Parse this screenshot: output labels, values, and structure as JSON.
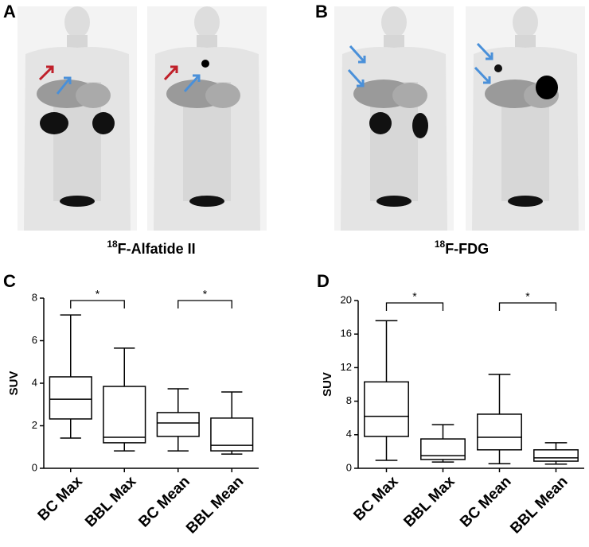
{
  "images": [
    {
      "label": "A"
    },
    {
      "label": "B"
    }
  ],
  "chart_data": [
    {
      "type": "box",
      "panel": "C",
      "title": {
        "isotope": "18",
        "name": "F-Alfatide II"
      },
      "ylabel": "SUV",
      "categories": [
        "BC Max",
        "BBL Max",
        "BC Mean",
        "BBL Mean"
      ],
      "boxes": [
        {
          "min": 1.42,
          "q1": 2.32,
          "median": 3.25,
          "q3": 4.3,
          "max": 7.21
        },
        {
          "min": 0.82,
          "q1": 1.2,
          "median": 1.46,
          "q3": 3.85,
          "max": 5.65
        },
        {
          "min": 0.82,
          "q1": 1.5,
          "median": 2.13,
          "q3": 2.62,
          "max": 3.74
        },
        {
          "min": 0.67,
          "q1": 0.82,
          "median": 1.08,
          "q3": 2.36,
          "max": 3.59
        }
      ],
      "ylim": [
        0,
        8
      ],
      "yticks": [
        0,
        2,
        4,
        6,
        8
      ],
      "annotations": [
        {
          "text": "*",
          "between": [
            0,
            1
          ]
        },
        {
          "text": "*",
          "between": [
            2,
            3
          ]
        }
      ]
    },
    {
      "type": "box",
      "panel": "D",
      "title": {
        "isotope": "18",
        "name": "F-FDG"
      },
      "ylabel": "SUV",
      "categories": [
        "BC Max",
        "BBL Max",
        "BC Mean",
        "BBL Mean"
      ],
      "boxes": [
        {
          "min": 0.95,
          "q1": 3.8,
          "median": 6.2,
          "q3": 10.3,
          "max": 17.6
        },
        {
          "min": 0.75,
          "q1": 1.05,
          "median": 1.5,
          "q3": 3.5,
          "max": 5.2
        },
        {
          "min": 0.55,
          "q1": 2.2,
          "median": 3.7,
          "q3": 6.45,
          "max": 11.2
        },
        {
          "min": 0.5,
          "q1": 0.85,
          "median": 1.25,
          "q3": 2.2,
          "max": 3.05
        }
      ],
      "ylim": [
        0,
        20
      ],
      "yticks": [
        0,
        4,
        8,
        12,
        16,
        20
      ],
      "annotations": [
        {
          "text": "*",
          "between": [
            0,
            1
          ]
        },
        {
          "text": "*",
          "between": [
            2,
            3
          ]
        }
      ]
    }
  ]
}
